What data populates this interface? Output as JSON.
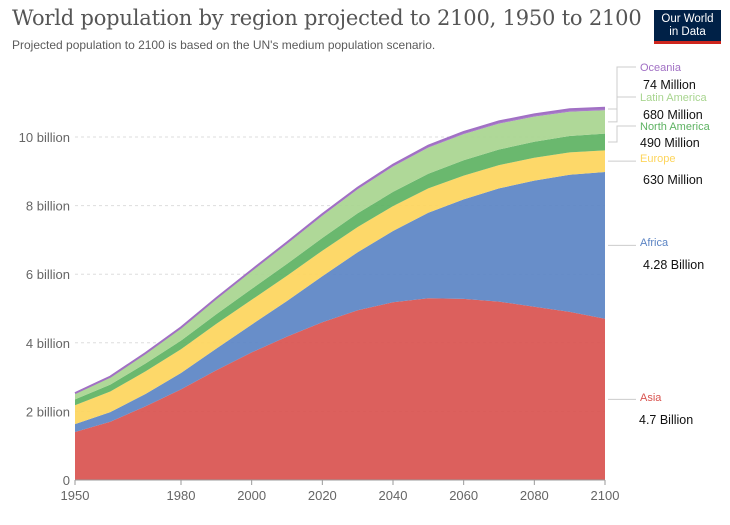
{
  "header": {
    "title": "World population by region projected to 2100, 1950 to 2100",
    "subtitle": "Projected population to 2100 is based on the UN's medium population scenario."
  },
  "logo": {
    "line1": "Our World",
    "line2": "in Data",
    "bg_color": "#002147",
    "bar_color": "#ce261e"
  },
  "chart_data": {
    "type": "area",
    "stacked": true,
    "x": [
      1950,
      1960,
      1970,
      1980,
      1990,
      2000,
      2010,
      2020,
      2030,
      2040,
      2050,
      2060,
      2070,
      2080,
      2090,
      2100
    ],
    "xlim": [
      1950,
      2100
    ],
    "ylim": [
      0,
      11000000000
    ],
    "x_ticks": [
      1950,
      1980,
      2000,
      2020,
      2040,
      2060,
      2080,
      2100
    ],
    "y_ticks": [
      {
        "value": 0,
        "label": "0"
      },
      {
        "value": 2000000000,
        "label": "2 billion"
      },
      {
        "value": 4000000000,
        "label": "4 billion"
      },
      {
        "value": 6000000000,
        "label": "6 billion"
      },
      {
        "value": 8000000000,
        "label": "8 billion"
      },
      {
        "value": 10000000000,
        "label": "10 billion"
      }
    ],
    "grid": "horizontal-dashed",
    "legend": "right-end-labels",
    "series": [
      {
        "name": "Asia",
        "color": "#d9534f",
        "end_label": "4.7 Billion",
        "values": [
          1400000000,
          1700000000,
          2150000000,
          2640000000,
          3200000000,
          3720000000,
          4180000000,
          4600000000,
          4950000000,
          5180000000,
          5300000000,
          5280000000,
          5200000000,
          5050000000,
          4900000000,
          4700000000
        ]
      },
      {
        "name": "Africa",
        "color": "#5b84c4",
        "end_label": "4.28 Billion",
        "values": [
          230000000,
          280000000,
          360000000,
          480000000,
          630000000,
          810000000,
          1040000000,
          1340000000,
          1690000000,
          2080000000,
          2490000000,
          2900000000,
          3300000000,
          3680000000,
          4000000000,
          4280000000
        ]
      },
      {
        "name": "Europe",
        "color": "#fdd55c",
        "end_label": "630 Million",
        "values": [
          550000000,
          600000000,
          660000000,
          690000000,
          720000000,
          725000000,
          735000000,
          745000000,
          735000000,
          725000000,
          710000000,
          695000000,
          680000000,
          665000000,
          650000000,
          630000000
        ]
      },
      {
        "name": "North America",
        "color": "#5db262",
        "end_label": "490 Million",
        "values": [
          170000000,
          200000000,
          230000000,
          255000000,
          280000000,
          315000000,
          345000000,
          370000000,
          400000000,
          415000000,
          430000000,
          445000000,
          455000000,
          465000000,
          478000000,
          490000000
        ]
      },
      {
        "name": "Latin America",
        "color": "#a8d58f",
        "end_label": "680 Million",
        "values": [
          170000000,
          220000000,
          285000000,
          360000000,
          445000000,
          520000000,
          590000000,
          650000000,
          700000000,
          740000000,
          760000000,
          765000000,
          755000000,
          735000000,
          710000000,
          680000000
        ]
      },
      {
        "name": "Oceania",
        "color": "#a170c4",
        "end_label": "74 Million",
        "values": [
          13000000,
          16000000,
          20000000,
          23000000,
          27000000,
          31000000,
          36000000,
          43000000,
          48000000,
          52000000,
          57000000,
          61000000,
          65000000,
          68000000,
          71000000,
          74000000
        ]
      }
    ]
  }
}
